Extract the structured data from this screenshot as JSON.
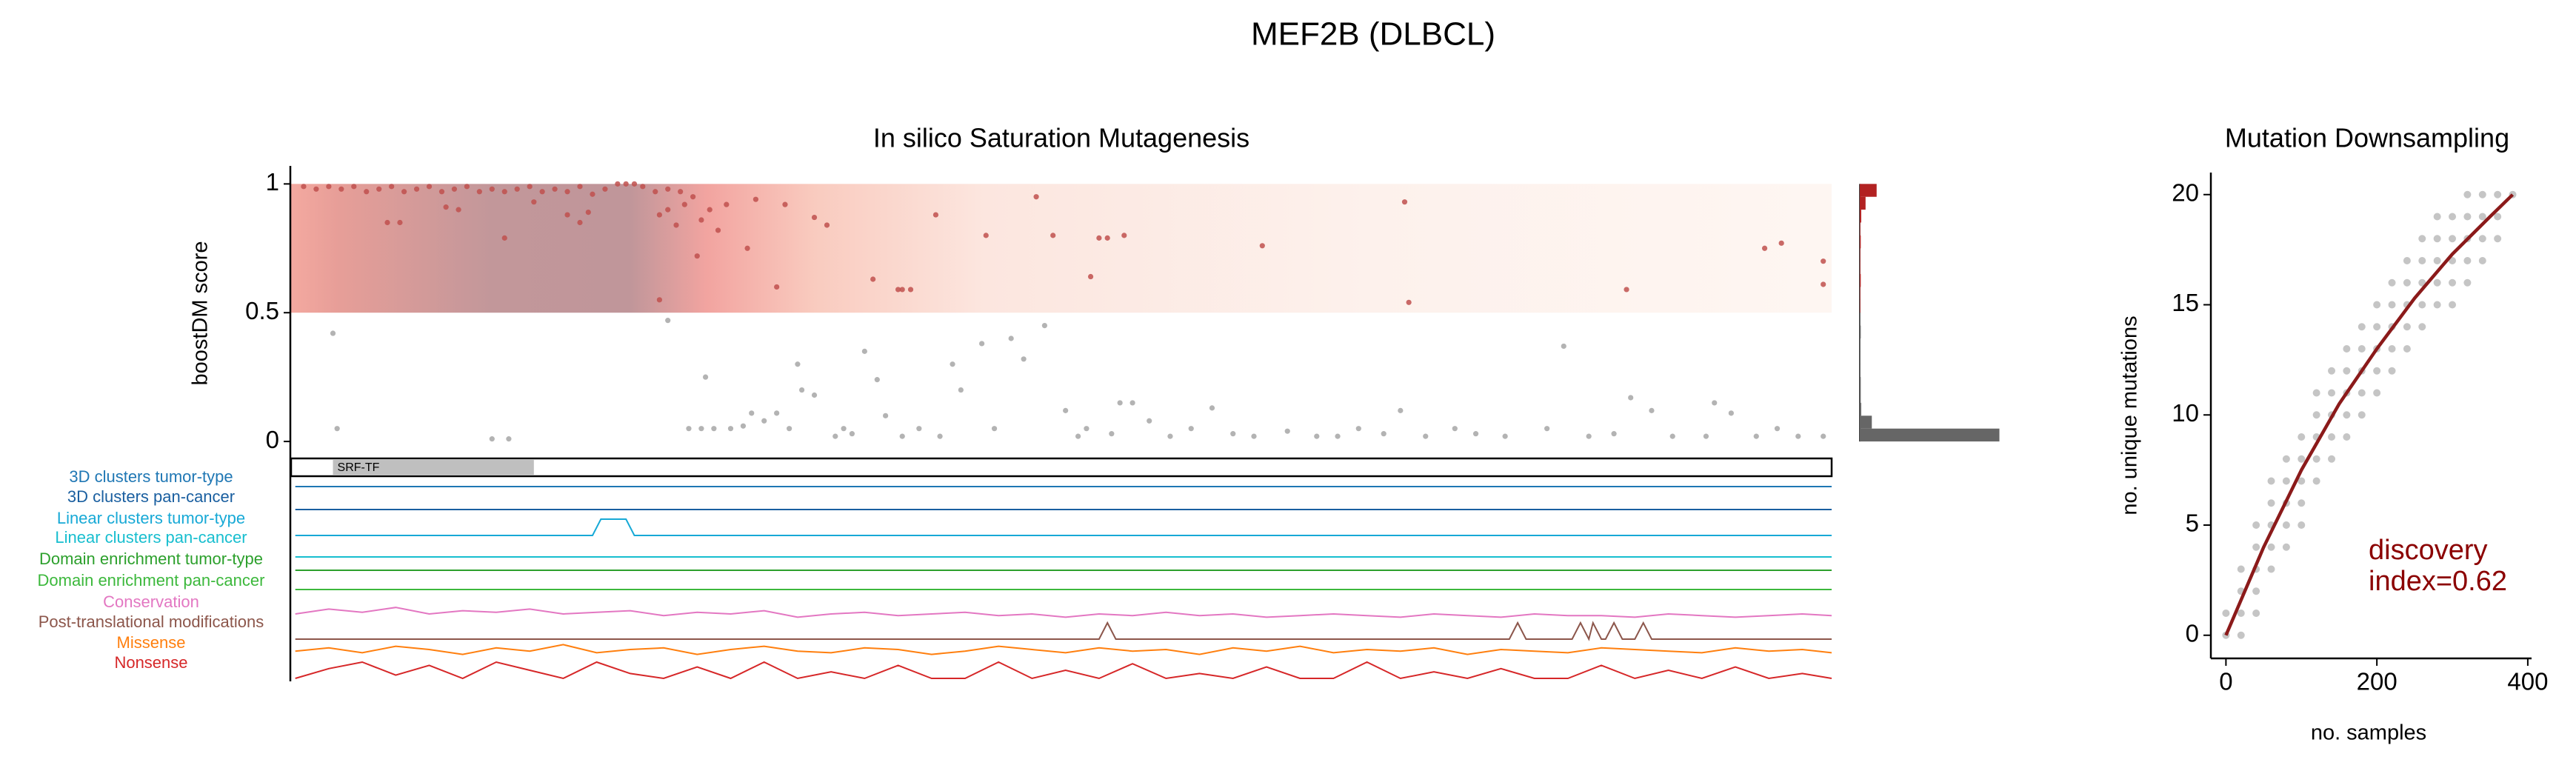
{
  "title": "MEF2B (DLBCL)",
  "chart_data": [
    {
      "type": "scatter",
      "title": "In silico Saturation Mutagenesis",
      "ylabel": "boostDM score",
      "xlim": [
        0,
        368
      ],
      "ylim": [
        -0.04,
        1.07
      ],
      "yticks": [
        0,
        0.5,
        1
      ],
      "series": [
        {
          "color": "#c0504d",
          "x": [
            3,
            6,
            9,
            12,
            15,
            18,
            21,
            24,
            27,
            30,
            33,
            36,
            39,
            42,
            45,
            48,
            51,
            54,
            57,
            60,
            63,
            66,
            69,
            72,
            75,
            78,
            80,
            82,
            84,
            87,
            90,
            93,
            23,
            26,
            37,
            40,
            51,
            58,
            66,
            69,
            71,
            88,
            90,
            92,
            94,
            96,
            97,
            98,
            100,
            102,
            104,
            109,
            111,
            116,
            118,
            125,
            128,
            139,
            145,
            146,
            148,
            154,
            166,
            178,
            182,
            191,
            193,
            195,
            199,
            232,
            266,
            267,
            319,
            352,
            356,
            366,
            366,
            88
          ],
          "values": [
            0.99,
            0.98,
            0.99,
            0.98,
            0.99,
            0.97,
            0.98,
            0.99,
            0.97,
            0.98,
            0.99,
            0.97,
            0.98,
            0.99,
            0.97,
            0.98,
            0.97,
            0.98,
            0.99,
            0.97,
            0.98,
            0.97,
            0.99,
            0.96,
            0.98,
            1.0,
            1.0,
            1.0,
            0.99,
            0.97,
            0.98,
            0.97,
            0.85,
            0.85,
            0.91,
            0.9,
            0.79,
            0.93,
            0.88,
            0.85,
            0.89,
            0.88,
            0.9,
            0.84,
            0.92,
            0.95,
            0.72,
            0.86,
            0.9,
            0.82,
            0.92,
            0.75,
            0.94,
            0.6,
            0.92,
            0.87,
            0.84,
            0.63,
            0.59,
            0.59,
            0.59,
            0.88,
            0.8,
            0.95,
            0.8,
            0.64,
            0.79,
            0.79,
            0.8,
            0.76,
            0.93,
            0.54,
            0.59,
            0.75,
            0.77,
            0.7,
            0.61,
            0.55
          ]
        },
        {
          "color": "#a6a6a6",
          "x": [
            10,
            11,
            48,
            52,
            90,
            95,
            98,
            101,
            99,
            105,
            108,
            110,
            113,
            116,
            119,
            121,
            122,
            125,
            130,
            132,
            134,
            137,
            140,
            142,
            146,
            150,
            155,
            158,
            160,
            165,
            168,
            172,
            175,
            180,
            185,
            188,
            190,
            196,
            198,
            201,
            205,
            210,
            215,
            220,
            225,
            230,
            238,
            245,
            250,
            255,
            261,
            265,
            271,
            278,
            283,
            290,
            300,
            304,
            310,
            316,
            320,
            325,
            330,
            338,
            340,
            344,
            350,
            355,
            360,
            366
          ],
          "values": [
            0.42,
            0.05,
            0.01,
            0.01,
            0.47,
            0.05,
            0.05,
            0.05,
            0.25,
            0.05,
            0.06,
            0.11,
            0.08,
            0.11,
            0.05,
            0.3,
            0.2,
            0.18,
            0.02,
            0.05,
            0.03,
            0.35,
            0.24,
            0.1,
            0.02,
            0.05,
            0.02,
            0.3,
            0.2,
            0.38,
            0.05,
            0.4,
            0.32,
            0.45,
            0.12,
            0.02,
            0.05,
            0.03,
            0.15,
            0.15,
            0.08,
            0.02,
            0.05,
            0.13,
            0.03,
            0.02,
            0.04,
            0.02,
            0.02,
            0.05,
            0.03,
            0.12,
            0.02,
            0.05,
            0.03,
            0.02,
            0.05,
            0.37,
            0.02,
            0.03,
            0.17,
            0.12,
            0.02,
            0.02,
            0.15,
            0.11,
            0.02,
            0.05,
            0.02,
            0.02
          ]
        }
      ],
      "histogram": {
        "xlim": [
          0,
          300
        ],
        "bins": [
          0,
          0.05,
          0.1,
          0.15,
          0.2,
          0.25,
          0.3,
          0.35,
          0.4,
          0.45,
          0.5,
          0.55,
          0.6,
          0.65,
          0.7,
          0.75,
          0.8,
          0.85,
          0.9,
          0.95,
          1
        ],
        "counts": [
          290,
          25,
          3,
          2,
          2,
          1,
          1,
          1,
          2,
          1,
          1,
          1,
          2,
          1,
          1,
          2,
          1,
          3,
          12,
          35
        ],
        "colors": [
          "#666666",
          "#666666",
          "#666666",
          "#666666",
          "#666666",
          "#666666",
          "#666666",
          "#666666",
          "#666666",
          "#666666",
          "#b22222",
          "#b22222",
          "#b22222",
          "#b22222",
          "#b22222",
          "#b22222",
          "#b22222",
          "#b22222",
          "#b22222",
          "#b22222"
        ]
      },
      "domains": [
        {
          "name": "SRF-TF",
          "start": 10,
          "end": 58,
          "color": "#bfbfbf"
        }
      ],
      "track_ylim": [
        0,
        1
      ],
      "tracks": [
        {
          "name": "3D clusters tumor-type",
          "color": "#1f77b4",
          "x": [
            1,
            368
          ],
          "values": [
            0,
            0
          ]
        },
        {
          "name": "3D clusters pan-cancer",
          "color": "#1a5fa0",
          "x": [
            1,
            368
          ],
          "values": [
            0,
            0
          ]
        },
        {
          "name": "Linear clusters tumor-type",
          "color": "#17a9d6",
          "x": [
            1,
            72,
            74,
            80,
            82,
            368
          ],
          "values": [
            0,
            0,
            1,
            1,
            0,
            0
          ]
        },
        {
          "name": "Linear clusters pan-cancer",
          "color": "#17becf",
          "x": [
            1,
            368
          ],
          "values": [
            0,
            0
          ]
        },
        {
          "name": "Domain enrichment tumor-type",
          "color": "#2ca02c",
          "x": [
            1,
            368
          ],
          "values": [
            0,
            0
          ]
        },
        {
          "name": "Domain enrichment pan-cancer",
          "color": "#3cb83c",
          "x": [
            1,
            368
          ],
          "values": [
            0,
            0
          ]
        },
        {
          "name": "Conservation",
          "color": "#e377c2",
          "x": [
            1,
            9,
            17,
            25,
            33,
            41,
            49,
            57,
            65,
            73,
            81,
            89,
            97,
            105,
            113,
            121,
            129,
            137,
            145,
            153,
            161,
            169,
            177,
            185,
            193,
            201,
            209,
            217,
            225,
            233,
            241,
            249,
            257,
            265,
            273,
            281,
            289,
            297,
            305,
            313,
            321,
            329,
            337,
            345,
            353,
            361,
            368
          ],
          "values": [
            0.5,
            0.8,
            0.6,
            0.9,
            0.5,
            0.7,
            0.6,
            0.8,
            0.5,
            0.6,
            0.7,
            0.4,
            0.6,
            0.5,
            0.7,
            0.3,
            0.5,
            0.6,
            0.4,
            0.5,
            0.6,
            0.4,
            0.5,
            0.3,
            0.5,
            0.4,
            0.6,
            0.4,
            0.5,
            0.3,
            0.4,
            0.5,
            0.4,
            0.3,
            0.5,
            0.4,
            0.3,
            0.5,
            0.4,
            0.4,
            0.3,
            0.5,
            0.4,
            0.3,
            0.4,
            0.5,
            0.4
          ]
        },
        {
          "name": "Post-translational modifications",
          "color": "#8c564b",
          "x": [
            1,
            193,
            195,
            197,
            291,
            293,
            295,
            306,
            308,
            310,
            311,
            313,
            314,
            316,
            318,
            321,
            323,
            325,
            368
          ],
          "values": [
            0,
            0,
            1,
            0,
            0,
            1,
            0,
            0,
            1,
            0,
            1,
            0,
            0,
            1,
            0,
            0,
            1,
            0,
            0
          ]
        },
        {
          "name": "Missense",
          "color": "#ff7f0e",
          "x": [
            1,
            9,
            17,
            25,
            33,
            41,
            49,
            57,
            65,
            73,
            81,
            89,
            97,
            105,
            113,
            121,
            129,
            137,
            145,
            153,
            161,
            169,
            177,
            185,
            193,
            201,
            209,
            217,
            225,
            233,
            241,
            249,
            257,
            265,
            273,
            281,
            289,
            297,
            305,
            313,
            321,
            329,
            337,
            345,
            353,
            361,
            368
          ],
          "values": [
            0.4,
            0.6,
            0.3,
            0.7,
            0.5,
            0.2,
            0.6,
            0.4,
            0.8,
            0.3,
            0.5,
            0.6,
            0.2,
            0.5,
            0.7,
            0.4,
            0.3,
            0.6,
            0.5,
            0.2,
            0.4,
            0.7,
            0.5,
            0.3,
            0.6,
            0.4,
            0.5,
            0.2,
            0.6,
            0.4,
            0.7,
            0.3,
            0.5,
            0.4,
            0.6,
            0.2,
            0.5,
            0.4,
            0.3,
            0.6,
            0.5,
            0.4,
            0.3,
            0.6,
            0.4,
            0.5,
            0.3
          ]
        },
        {
          "name": "Nonsense",
          "color": "#d62728",
          "x": [
            1,
            9,
            17,
            25,
            33,
            41,
            49,
            57,
            65,
            73,
            81,
            89,
            97,
            105,
            113,
            121,
            129,
            137,
            145,
            153,
            161,
            169,
            177,
            185,
            193,
            201,
            209,
            217,
            225,
            233,
            241,
            249,
            257,
            265,
            273,
            281,
            289,
            297,
            305,
            313,
            321,
            329,
            337,
            345,
            353,
            361,
            368
          ],
          "values": [
            0,
            0.6,
            1,
            0.2,
            0.8,
            0,
            1,
            0.5,
            0,
            1,
            0.3,
            0,
            0.7,
            0,
            1,
            0,
            0.4,
            0,
            0.8,
            0,
            0,
            1,
            0,
            0.5,
            0,
            0.9,
            0,
            0.3,
            0,
            0.7,
            0,
            0,
            1,
            0,
            0.4,
            0,
            0.6,
            0,
            0,
            0.8,
            0,
            0.5,
            0,
            0.7,
            0,
            0.3,
            0
          ]
        }
      ]
    },
    {
      "type": "scatter",
      "title": "Mutation Downsampling",
      "xlabel": "no. samples",
      "ylabel": "no. unique mutations",
      "xlim": [
        -20,
        405
      ],
      "ylim": [
        -1.05,
        21
      ],
      "xticks": [
        0,
        200,
        400
      ],
      "yticks": [
        0,
        5,
        10,
        15,
        20
      ],
      "points": {
        "color": "#7f7f7f",
        "x": [
          0,
          0,
          20,
          20,
          20,
          20,
          40,
          40,
          40,
          40,
          40,
          60,
          60,
          60,
          60,
          60,
          80,
          80,
          80,
          80,
          80,
          100,
          100,
          100,
          100,
          100,
          120,
          120,
          120,
          120,
          120,
          140,
          140,
          140,
          140,
          140,
          160,
          160,
          160,
          160,
          160,
          180,
          180,
          180,
          180,
          180,
          200,
          200,
          200,
          200,
          200,
          220,
          220,
          220,
          220,
          220,
          240,
          240,
          240,
          240,
          240,
          260,
          260,
          260,
          260,
          260,
          280,
          280,
          280,
          280,
          280,
          300,
          300,
          300,
          300,
          300,
          320,
          320,
          320,
          320,
          320,
          340,
          340,
          340,
          340,
          360,
          360,
          360,
          380
        ],
        "y": [
          0,
          1,
          0,
          1,
          2,
          3,
          1,
          2,
          3,
          4,
          5,
          3,
          4,
          5,
          6,
          7,
          4,
          5,
          6,
          7,
          8,
          5,
          6,
          7,
          8,
          9,
          7,
          8,
          9,
          10,
          11,
          8,
          9,
          10,
          11,
          12,
          9,
          10,
          11,
          12,
          13,
          10,
          11,
          12,
          13,
          14,
          11,
          12,
          13,
          14,
          15,
          12,
          13,
          14,
          15,
          16,
          13,
          14,
          15,
          16,
          17,
          14,
          15,
          16,
          17,
          18,
          15,
          16,
          17,
          18,
          19,
          15,
          16,
          17,
          18,
          19,
          16,
          17,
          18,
          19,
          20,
          17,
          18,
          19,
          20,
          18,
          19,
          20,
          20
        ]
      },
      "line": {
        "color": "#8b1a1a",
        "x": [
          0,
          50,
          100,
          150,
          200,
          250,
          300,
          350,
          380
        ],
        "y": [
          0,
          4,
          7.5,
          10.5,
          13,
          15.3,
          17.3,
          19,
          20
        ]
      },
      "annotation": [
        "discovery",
        "index=0.62"
      ],
      "annotation_color": "#8b0000"
    }
  ]
}
